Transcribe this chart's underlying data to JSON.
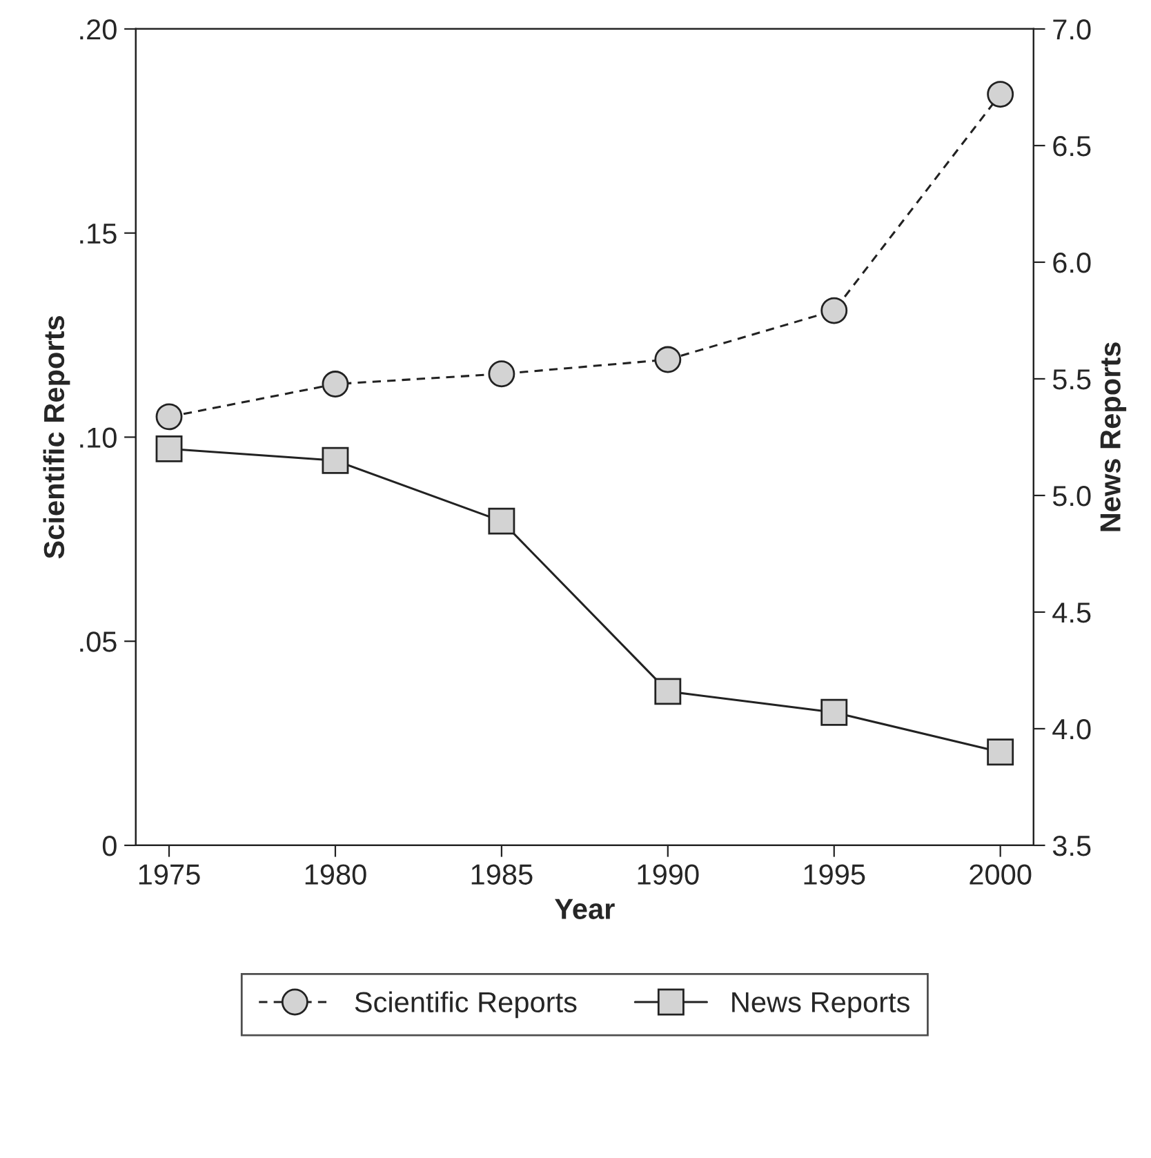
{
  "chart_data": {
    "type": "line",
    "xlabel": "Year",
    "ylabel": "Scientific Reports",
    "y2label": "News Reports",
    "x": [
      1975,
      1980,
      1985,
      1990,
      1995,
      2000
    ],
    "xlim": [
      1974,
      2001
    ],
    "xticks": [
      1975,
      1980,
      1985,
      1990,
      1995,
      2000
    ],
    "ylim": [
      0,
      0.2
    ],
    "yticks": [
      {
        "value": 0,
        "label": "0"
      },
      {
        "value": 0.05,
        "label": ".05"
      },
      {
        "value": 0.1,
        "label": ".10"
      },
      {
        "value": 0.15,
        "label": ".15"
      },
      {
        "value": 0.2,
        "label": ".20"
      }
    ],
    "y2lim": [
      3.5,
      7.0
    ],
    "y2ticks": [
      {
        "value": 3.5,
        "label": "3.5"
      },
      {
        "value": 4.0,
        "label": "4.0"
      },
      {
        "value": 4.5,
        "label": "4.5"
      },
      {
        "value": 5.0,
        "label": "5.0"
      },
      {
        "value": 5.5,
        "label": "5.5"
      },
      {
        "value": 6.0,
        "label": "6.0"
      },
      {
        "value": 6.5,
        "label": "6.5"
      },
      {
        "value": 7.0,
        "label": "7.0"
      }
    ],
    "grid": false,
    "legend": "bottom",
    "series": [
      {
        "name": "Scientific Reports",
        "color": "#d3d3d3",
        "marker": "circle",
        "line_style": "dashed",
        "values": [
          0.105,
          0.113,
          0.1155,
          0.119,
          0.131,
          0.184
        ]
      },
      {
        "name": "News Reports",
        "color": "#d3d3d3",
        "marker": "square",
        "line_style": "solid",
        "axis": "y2",
        "values": [
          5.2,
          5.15,
          4.89,
          4.16,
          4.07,
          3.9
        ]
      }
    ]
  }
}
